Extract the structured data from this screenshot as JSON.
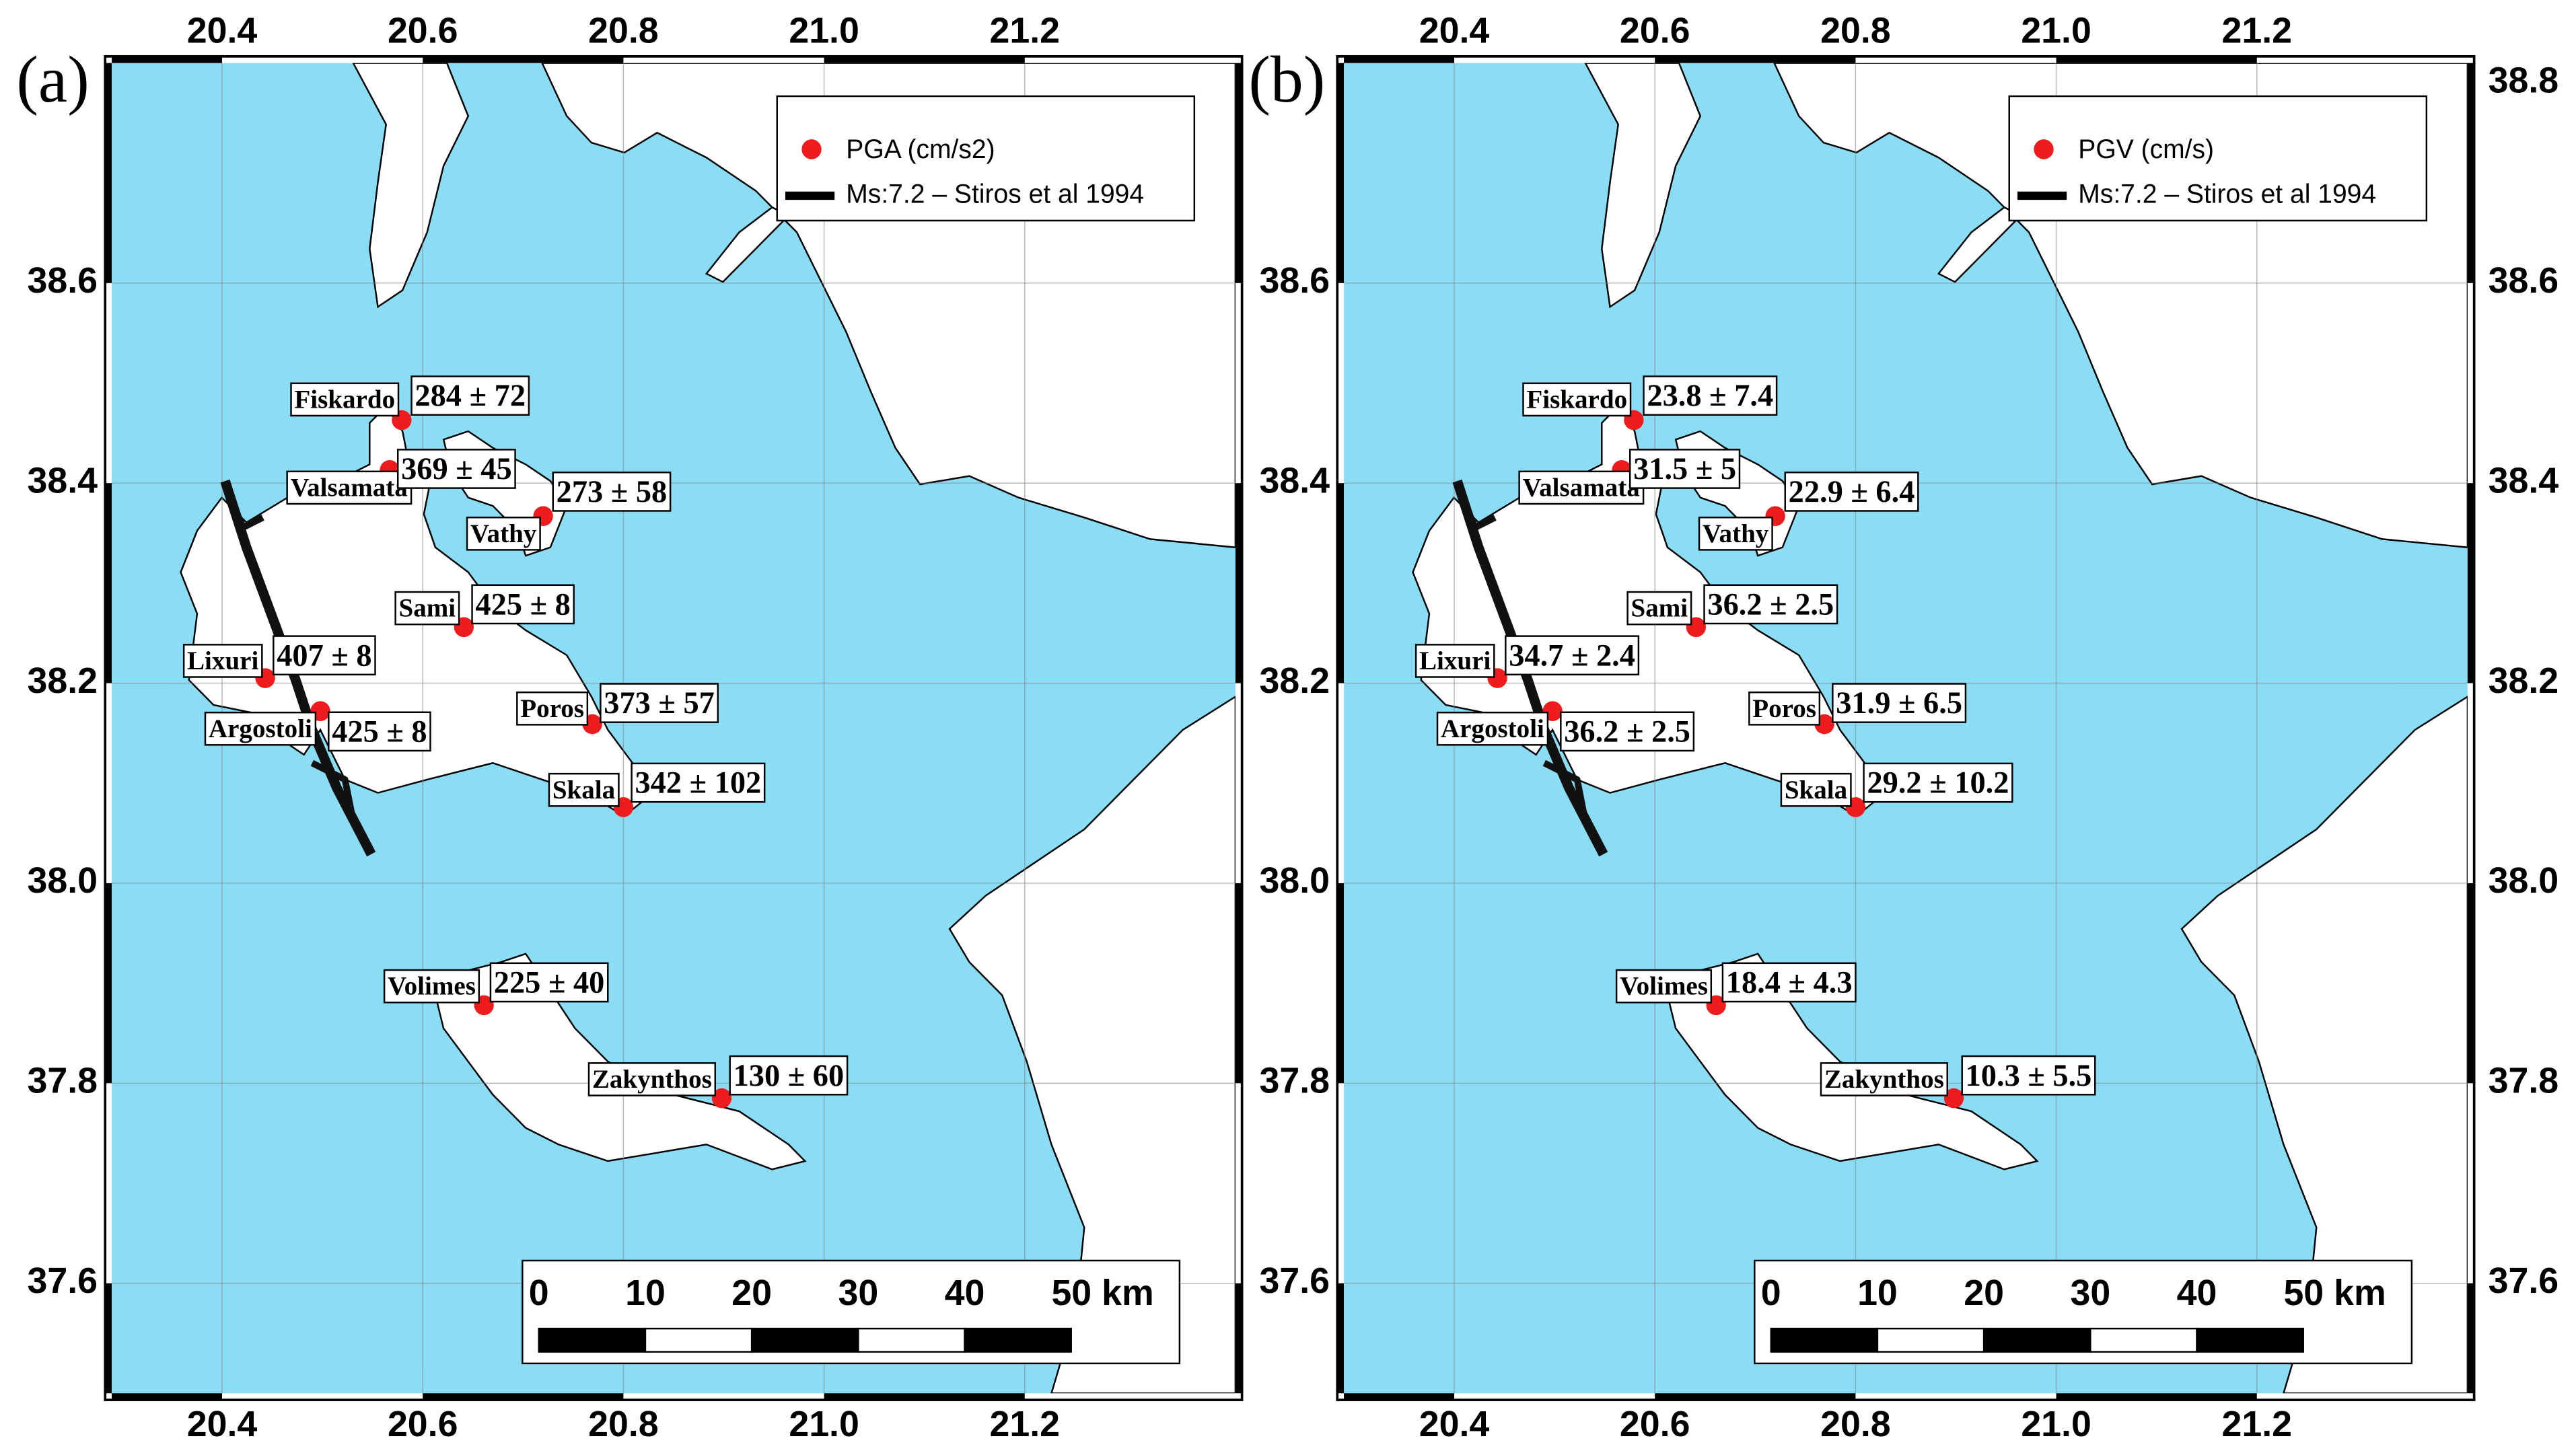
{
  "panels": [
    {
      "label": "(a)",
      "legend": {
        "marker": "PGA (cm/s2)",
        "line": "Ms:7.2 – Stiros et al 1994"
      },
      "values": [
        "284 ± 72",
        "369 ± 45",
        "273 ± 58",
        "425 ± 8",
        "407 ± 8",
        "425 ± 8",
        "373 ± 57",
        "342 ± 102",
        "225 ± 40",
        "130 ± 60"
      ],
      "xlim": [
        20.29,
        21.41
      ],
      "xticks": [
        20.4,
        20.6,
        20.8,
        {
          "value": 21,
          "label": "21.0"
        },
        21.2
      ],
      "ylim": [
        37.49,
        38.82
      ],
      "yticks": [
        37.6,
        37.8,
        {
          "value": 38,
          "label": "38.0"
        },
        38.2,
        38.4,
        38.6
      ]
    },
    {
      "label": "(b)",
      "legend": {
        "marker": "PGV (cm/s)",
        "line": "Ms:7.2 – Stiros et al 1994"
      },
      "values": [
        "23.8 ± 7.4",
        "31.5 ± 5",
        "22.9 ± 6.4",
        "36.2 ± 2.5",
        "34.7 ± 2.4",
        "36.2 ± 2.5",
        "31.9 ± 6.5",
        "29.2 ± 10.2",
        "18.4 ± 4.3",
        "10.3 ± 5.5"
      ],
      "xlim": [
        20.29,
        21.41
      ],
      "xticks": [
        20.4,
        20.6,
        20.8,
        {
          "value": 21,
          "label": "21.0"
        },
        21.2
      ],
      "ylim": [
        37.49,
        38.82
      ],
      "yticks": [
        37.6,
        37.8,
        {
          "value": 38,
          "label": "38.0"
        },
        38.2,
        38.4,
        38.6
      ],
      "y2ticks": [
        37.6,
        37.8,
        {
          "value": 38,
          "label": "38.0"
        },
        38.2,
        38.4,
        38.6,
        38.8
      ]
    }
  ],
  "stations": [
    {
      "name": "Fiskardo",
      "lon": 20.579,
      "lat": 38.463
    },
    {
      "name": "Valsamata",
      "lon": 20.567,
      "lat": 38.413
    },
    {
      "name": "Vathy",
      "lon": 20.72,
      "lat": 38.367
    },
    {
      "name": "Sami",
      "lon": 20.641,
      "lat": 38.256
    },
    {
      "name": "Lixuri",
      "lon": 20.443,
      "lat": 38.205
    },
    {
      "name": "Argostoli",
      "lon": 20.498,
      "lat": 38.172
    },
    {
      "name": "Poros",
      "lon": 20.769,
      "lat": 38.159
    },
    {
      "name": "Skala",
      "lon": 20.8,
      "lat": 38.076
    },
    {
      "name": "Volimes",
      "lon": 20.661,
      "lat": 37.878
    },
    {
      "name": "Zakynthos",
      "lon": 20.898,
      "lat": 37.785
    }
  ],
  "scale_bar": {
    "labels": [
      "0",
      "10",
      "20",
      "30",
      "40",
      "50 km"
    ]
  }
}
